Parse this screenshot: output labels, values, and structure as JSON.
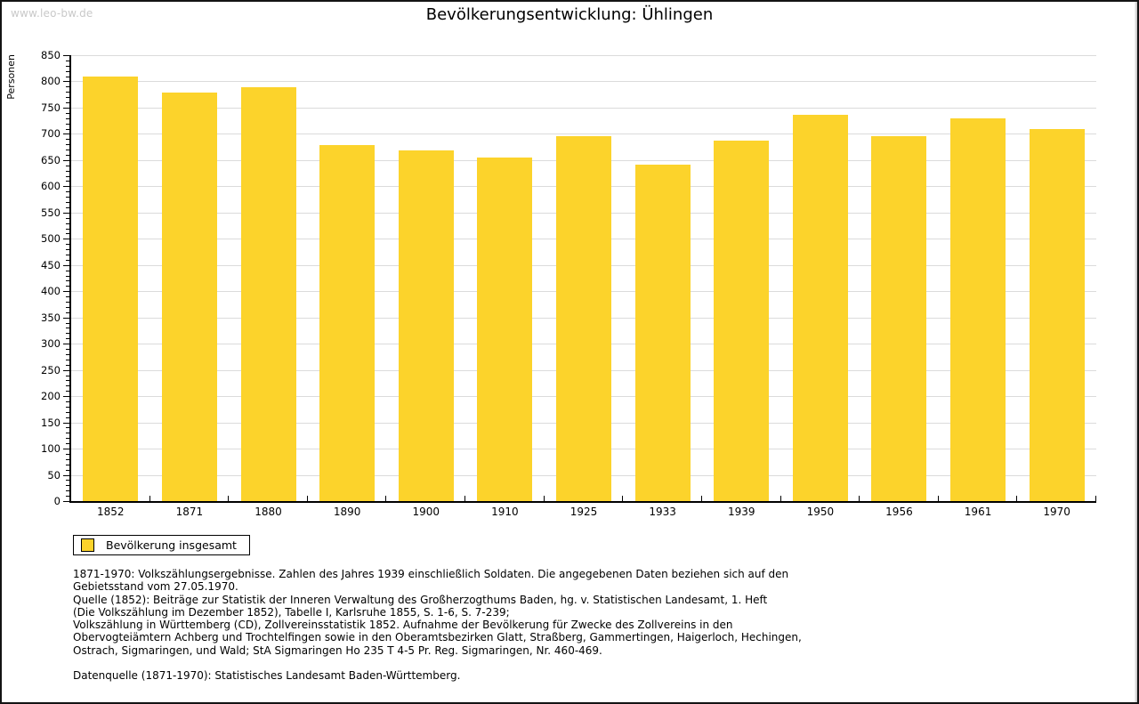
{
  "watermark": "www.leo-bw.de",
  "title": "Bevölkerungsentwicklung: Ühlingen",
  "chart_data": {
    "type": "bar",
    "title": "Bevölkerungsentwicklung: Ühlingen",
    "xlabel": "",
    "ylabel": "Personen",
    "categories": [
      "1852",
      "1871",
      "1880",
      "1890",
      "1900",
      "1910",
      "1925",
      "1933",
      "1939",
      "1950",
      "1956",
      "1961",
      "1970"
    ],
    "series": [
      {
        "name": "Bevölkerung insgesamt",
        "values": [
          810,
          778,
          789,
          678,
          668,
          655,
          695,
          642,
          687,
          736,
          696,
          730,
          710
        ],
        "color": "#FCD32B"
      }
    ],
    "ylim": [
      0,
      850
    ],
    "ytick_step": 50,
    "minor_tick_step": 10,
    "grid": true,
    "gridline_color": "#dbdbdb",
    "legend_position": "bottom-left"
  },
  "legend": {
    "label": "Bevölkerung insgesamt",
    "swatch_color": "#FCD32B"
  },
  "footnotes": {
    "lines": [
      "1871-1970: Volkszählungsergebnisse. Zahlen des Jahres 1939 einschließlich Soldaten. Die angegebenen Daten beziehen sich auf den",
      "Gebietsstand vom 27.05.1970.",
      "Quelle (1852): Beiträge zur Statistik der Inneren Verwaltung des Großherzogthums Baden, hg. v. Statistischen Landesamt, 1. Heft",
      "(Die Volkszählung im Dezember 1852), Tabelle I, Karlsruhe 1855, S. 1-6, S. 7-239;",
      "Volkszählung in Württemberg (CD), Zollvereinsstatistik 1852. Aufnahme der Bevölkerung für Zwecke des Zollvereins in den",
      "Obervogteiämtern Achberg und Trochtelfingen sowie in den Oberamtsbezirken Glatt, Straßberg, Gammertingen, Haigerloch, Hechingen,",
      "Ostrach, Sigmaringen, und Wald; StA Sigmaringen Ho 235 T 4-5 Pr. Reg. Sigmaringen, Nr. 460-469."
    ],
    "datasource": "Datenquelle (1871-1970): Statistisches Landesamt Baden-Württemberg."
  }
}
